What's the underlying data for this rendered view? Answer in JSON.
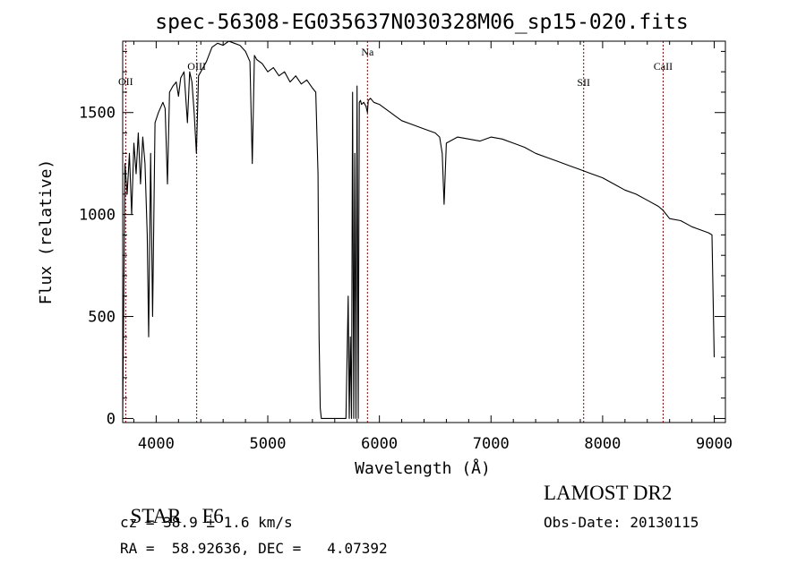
{
  "chart_data": {
    "type": "line",
    "title": "spec-56308-EG035637N030328M06_sp15-020.fits",
    "xlabel": "Wavelength (Å)",
    "ylabel": "Flux (relative)",
    "xlim": [
      3700,
      9100
    ],
    "ylim": [
      -20,
      1850
    ],
    "x_ticks": [
      4000,
      5000,
      6000,
      7000,
      8000,
      9000
    ],
    "x_tick_labels": [
      "4000",
      "5000",
      "6000",
      "7000",
      "8000",
      "9000"
    ],
    "y_ticks": [
      0,
      500,
      1000,
      1500
    ],
    "y_tick_labels": [
      "0",
      "500",
      "1000",
      "1500"
    ],
    "grid": false,
    "line_color": "#000000",
    "marker_color": "#8b0000",
    "lines": [
      {
        "label": "OII",
        "x": 3727
      },
      {
        "label": "OIII",
        "x": 4363
      },
      {
        "label": "Na",
        "x": 5893
      },
      {
        "label": "SII",
        "x": 7830
      },
      {
        "label": "CaII",
        "x": 8542
      }
    ],
    "series": [
      {
        "x": [
          3700,
          3720,
          3740,
          3760,
          3780,
          3800,
          3820,
          3840,
          3860,
          3880,
          3900,
          3920,
          3933,
          3950,
          3968,
          3990,
          4020,
          4060,
          4080,
          4101,
          4120,
          4150,
          4180,
          4200,
          4220,
          4250,
          4280,
          4300,
          4320,
          4340,
          4360,
          4380,
          4400,
          4450,
          4500,
          4550,
          4600,
          4650,
          4700,
          4750,
          4800,
          4840,
          4861,
          4880,
          4900,
          4950,
          5000,
          5050,
          5100,
          5150,
          5200,
          5250,
          5300,
          5350,
          5400,
          5430,
          5450,
          5460,
          5470,
          5480,
          5600,
          5700,
          5720,
          5730,
          5740,
          5750,
          5760,
          5770,
          5780,
          5790,
          5800,
          5810,
          5820,
          5830,
          5840,
          5860,
          5880,
          5893,
          5900,
          5920,
          5950,
          6000,
          6050,
          6100,
          6150,
          6200,
          6300,
          6400,
          6500,
          6540,
          6563,
          6580,
          6600,
          6700,
          6800,
          6900,
          7000,
          7100,
          7200,
          7300,
          7400,
          7500,
          7600,
          7700,
          7800,
          7900,
          8000,
          8100,
          8200,
          8300,
          8400,
          8500,
          8542,
          8600,
          8700,
          8800,
          8900,
          8950,
          8980,
          9000
        ],
        "values": [
          0,
          1250,
          1100,
          1300,
          1000,
          1350,
          1200,
          1400,
          1150,
          1380,
          1250,
          900,
          400,
          1300,
          500,
          1450,
          1500,
          1550,
          1520,
          1150,
          1600,
          1630,
          1650,
          1580,
          1670,
          1700,
          1450,
          1700,
          1650,
          1500,
          1300,
          1680,
          1700,
          1750,
          1820,
          1840,
          1830,
          1850,
          1840,
          1830,
          1800,
          1750,
          1250,
          1780,
          1760,
          1740,
          1700,
          1720,
          1680,
          1700,
          1650,
          1680,
          1640,
          1660,
          1620,
          1600,
          1200,
          400,
          50,
          0,
          0,
          0,
          600,
          0,
          400,
          0,
          1600,
          0,
          1300,
          0,
          1630,
          0,
          1550,
          1560,
          1540,
          1550,
          1530,
          1500,
          1560,
          1570,
          1550,
          1540,
          1520,
          1500,
          1480,
          1460,
          1440,
          1420,
          1400,
          1380,
          1300,
          1050,
          1350,
          1380,
          1370,
          1360,
          1380,
          1370,
          1350,
          1330,
          1300,
          1280,
          1260,
          1240,
          1220,
          1200,
          1180,
          1150,
          1120,
          1100,
          1070,
          1040,
          1020,
          980,
          970,
          940,
          920,
          910,
          900,
          300
        ]
      }
    ]
  },
  "info": {
    "object_type": "STAR",
    "subclass": "F6",
    "redshift": "cz = 38.9 ± 1.6 km/s",
    "coordinates": "RA =  58.92636, DEC =   4.07392",
    "survey": "LAMOST DR2",
    "obs_date": "Obs-Date: 20130115"
  }
}
